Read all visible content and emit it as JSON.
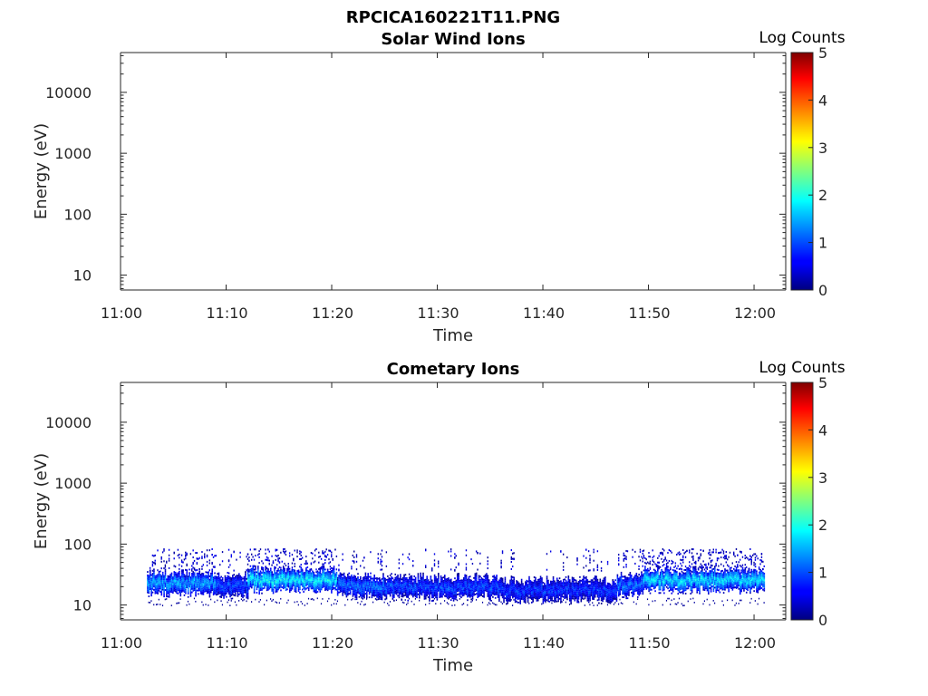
{
  "figure": {
    "title": "RPCICA160221T11.PNG"
  },
  "chart_data": [
    {
      "type": "heatmap",
      "title": "Solar Wind Ions",
      "xlabel": "Time",
      "ylabel": "Energy (eV)",
      "x_tick_labels": [
        "11:00",
        "11:10",
        "11:20",
        "11:30",
        "11:40",
        "11:50",
        "12:00"
      ],
      "x_tick_minutes": [
        0,
        10,
        20,
        30,
        40,
        50,
        60
      ],
      "xlim_minutes": [
        0,
        63
      ],
      "y_scale": "log",
      "y_tick_labels": [
        "10",
        "100",
        "1000",
        "10000"
      ],
      "y_tick_values": [
        10,
        100,
        1000,
        10000
      ],
      "ylim": [
        5.7,
        45000
      ],
      "colorbar": {
        "label": "Log Counts",
        "tick_labels": [
          "0",
          "1",
          "2",
          "3",
          "4",
          "5"
        ],
        "range": [
          0,
          5
        ],
        "colormap": "jet"
      },
      "bands": []
    },
    {
      "type": "heatmap",
      "title": "Cometary Ions",
      "xlabel": "Time",
      "ylabel": "Energy (eV)",
      "x_tick_labels": [
        "11:00",
        "11:10",
        "11:20",
        "11:30",
        "11:40",
        "11:50",
        "12:00"
      ],
      "x_tick_minutes": [
        0,
        10,
        20,
        30,
        40,
        50,
        60
      ],
      "xlim_minutes": [
        0,
        63
      ],
      "y_scale": "log",
      "y_tick_labels": [
        "10",
        "100",
        "1000",
        "10000"
      ],
      "y_tick_values": [
        10,
        100,
        1000,
        10000
      ],
      "ylim": [
        5.7,
        45000
      ],
      "colorbar": {
        "label": "Log Counts",
        "tick_labels": [
          "0",
          "1",
          "2",
          "3",
          "4",
          "5"
        ],
        "range": [
          0,
          5
        ],
        "colormap": "jet"
      },
      "data_time_range_minutes": [
        2.5,
        61
      ],
      "bands": [
        {
          "t_start": 2.5,
          "t_end": 9,
          "e_center": 22,
          "level": 1.5,
          "sparse_upper": 0.6
        },
        {
          "t_start": 9,
          "t_end": 12,
          "e_center": 20,
          "level": 1.0,
          "sparse_upper": 0.2
        },
        {
          "t_start": 12,
          "t_end": 20.5,
          "e_center": 25,
          "level": 1.9,
          "sparse_upper": 0.9
        },
        {
          "t_start": 20.5,
          "t_end": 25,
          "e_center": 20,
          "level": 1.2,
          "sparse_upper": 0.3
        },
        {
          "t_start": 25,
          "t_end": 36,
          "e_center": 19,
          "level": 1.0,
          "sparse_upper": 0.25
        },
        {
          "t_start": 36,
          "t_end": 47,
          "e_center": 17,
          "level": 0.9,
          "sparse_upper": 0.2
        },
        {
          "t_start": 47,
          "t_end": 49.5,
          "e_center": 21,
          "level": 1.2,
          "sparse_upper": 0.6
        },
        {
          "t_start": 49.5,
          "t_end": 61,
          "e_center": 25,
          "level": 1.8,
          "sparse_upper": 0.95
        }
      ]
    }
  ]
}
